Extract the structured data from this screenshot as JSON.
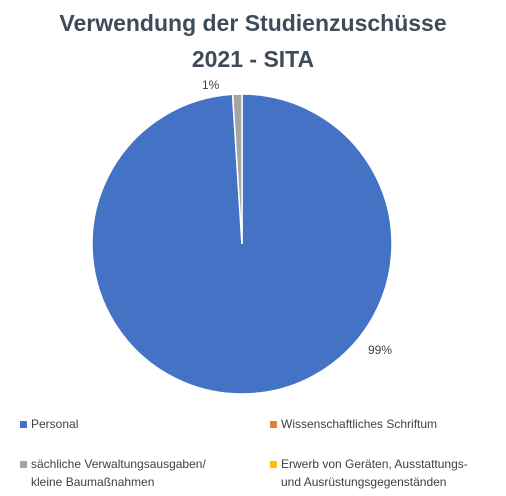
{
  "chart_data": {
    "type": "pie",
    "title_line1": "Verwendung der Studienzuschüsse",
    "title_line2": "2021 - SITA",
    "slices": [
      {
        "name": "Personal",
        "value": 99,
        "label": "99%",
        "color": "#4472c4"
      },
      {
        "name": "Wissenschaftliches Schriftum",
        "value": 0,
        "label": "",
        "color": "#ed7d31"
      },
      {
        "name": "sächliche Verwaltungsausgaben/ kleine Baumaßnahmen",
        "value": 1,
        "label": "1%",
        "color": "#a5a5a5"
      },
      {
        "name": "Erwerb von Geräten, Ausstattungs- und Ausrüstungsgegenständen",
        "value": 0,
        "label": "",
        "color": "#ffc000"
      }
    ],
    "legend": [
      {
        "text": "Personal",
        "color": "#4472c4"
      },
      {
        "text": "Wissenschaftliches Schriftum",
        "color": "#ed7d31"
      },
      {
        "line1": "sächliche Verwaltungsausgaben/",
        "line2": "kleine Baumaßnahmen",
        "color": "#a5a5a5"
      },
      {
        "line1": "Erwerb von Geräten, Ausstattungs-",
        "line2": "und Ausrüstungsgegenständen",
        "color": "#ffc000"
      }
    ],
    "legend_position": "bottom"
  }
}
